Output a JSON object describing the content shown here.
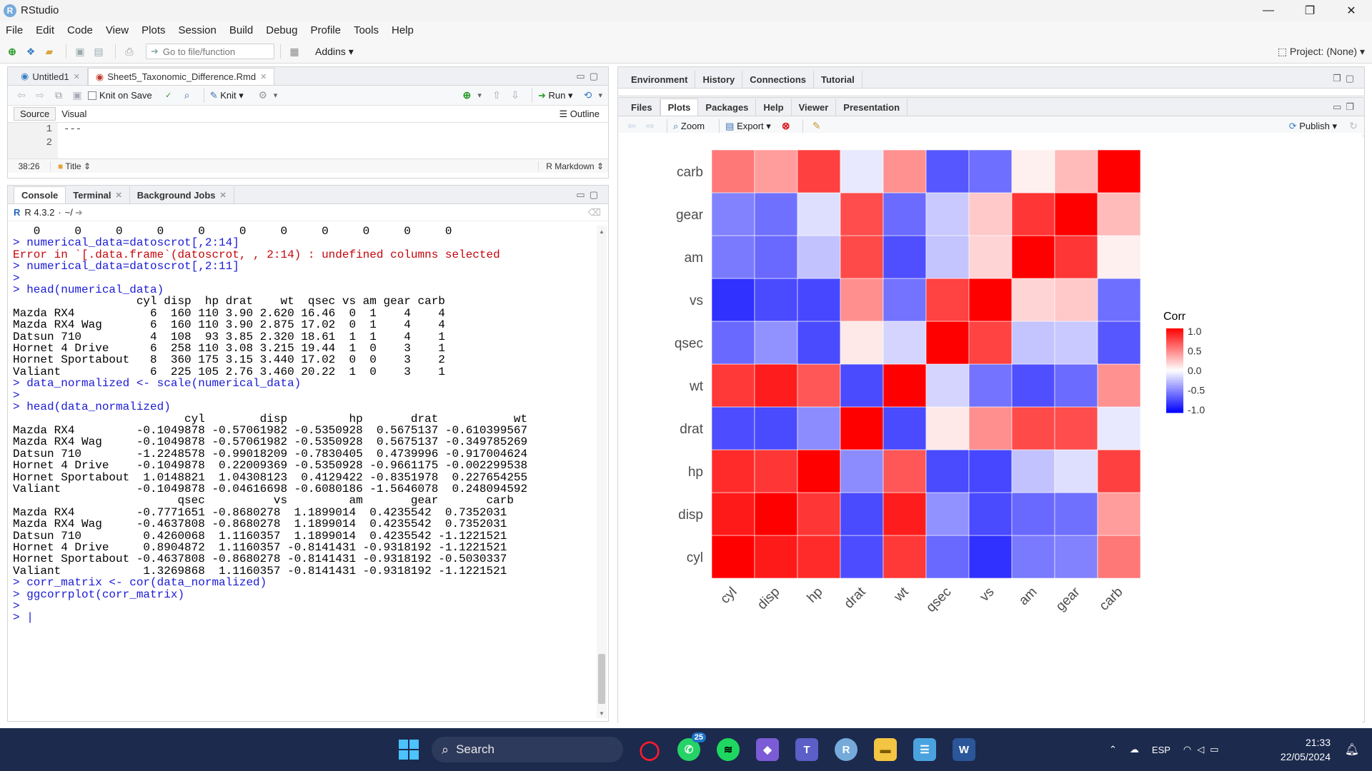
{
  "window": {
    "title": "RStudio",
    "icon": "R",
    "min": "—",
    "max": "❐",
    "close": "✕"
  },
  "menu": [
    "File",
    "Edit",
    "Code",
    "View",
    "Plots",
    "Session",
    "Build",
    "Debug",
    "Profile",
    "Tools",
    "Help"
  ],
  "toolbar": {
    "goto_placeholder": "Go to file/function",
    "addins": "Addins",
    "project": "Project: (None)"
  },
  "source_pane": {
    "tabs": [
      {
        "label": "Untitled1"
      },
      {
        "label": "Sheet5_Taxonomic_Difference.Rmd"
      }
    ],
    "knit_on_save": "Knit on Save",
    "knit": "Knit",
    "run": "Run",
    "mode_source": "Source",
    "mode_visual": "Visual",
    "outline": "Outline",
    "lines": [
      {
        "num": "1",
        "text": "---"
      },
      {
        "num": "2",
        "text": ""
      }
    ],
    "cursor_pos": "38:26",
    "section": "Title",
    "file_type": "R Markdown"
  },
  "console_pane": {
    "tabs": [
      {
        "label": "Console"
      },
      {
        "label": "Terminal"
      },
      {
        "label": "Background Jobs"
      }
    ],
    "r_version": "R 4.3.2",
    "path": "~/",
    "lines": [
      {
        "t": "out",
        "text": "   0     0     0     0     0     0     0     0     0     0     0"
      },
      {
        "t": "cmd",
        "text": "> numerical_data=datoscrot[,2:14]"
      },
      {
        "t": "err",
        "text": "Error in `[.data.frame`(datoscrot, , 2:14) : undefined columns selected"
      },
      {
        "t": "cmd",
        "text": "> numerical_data=datoscrot[,2:11]"
      },
      {
        "t": "cmd",
        "text": "> "
      },
      {
        "t": "cmd",
        "text": "> head(numerical_data)"
      },
      {
        "t": "out",
        "text": "                  cyl disp  hp drat    wt  qsec vs am gear carb"
      },
      {
        "t": "out",
        "text": "Mazda RX4           6  160 110 3.90 2.620 16.46  0  1    4    4"
      },
      {
        "t": "out",
        "text": "Mazda RX4 Wag       6  160 110 3.90 2.875 17.02  0  1    4    4"
      },
      {
        "t": "out",
        "text": "Datsun 710          4  108  93 3.85 2.320 18.61  1  1    4    1"
      },
      {
        "t": "out",
        "text": "Hornet 4 Drive      6  258 110 3.08 3.215 19.44  1  0    3    1"
      },
      {
        "t": "out",
        "text": "Hornet Sportabout   8  360 175 3.15 3.440 17.02  0  0    3    2"
      },
      {
        "t": "out",
        "text": "Valiant             6  225 105 2.76 3.460 20.22  1  0    3    1"
      },
      {
        "t": "cmd",
        "text": "> data_normalized <- scale(numerical_data)"
      },
      {
        "t": "cmd",
        "text": "> "
      },
      {
        "t": "cmd",
        "text": "> head(data_normalized)"
      },
      {
        "t": "out",
        "text": "                         cyl        disp         hp       drat           wt"
      },
      {
        "t": "out",
        "text": "Mazda RX4         -0.1049878 -0.57061982 -0.5350928  0.5675137 -0.610399567"
      },
      {
        "t": "out",
        "text": "Mazda RX4 Wag     -0.1049878 -0.57061982 -0.5350928  0.5675137 -0.349785269"
      },
      {
        "t": "out",
        "text": "Datsun 710        -1.2248578 -0.99018209 -0.7830405  0.4739996 -0.917004624"
      },
      {
        "t": "out",
        "text": "Hornet 4 Drive    -0.1049878  0.22009369 -0.5350928 -0.9661175 -0.002299538"
      },
      {
        "t": "out",
        "text": "Hornet Sportabout  1.0148821  1.04308123  0.4129422 -0.8351978  0.227654255"
      },
      {
        "t": "out",
        "text": "Valiant           -0.1049878 -0.04616698 -0.6080186 -1.5646078  0.248094592"
      },
      {
        "t": "out",
        "text": "                        qsec          vs         am       gear       carb"
      },
      {
        "t": "out",
        "text": "Mazda RX4         -0.7771651 -0.8680278  1.1899014  0.4235542  0.7352031"
      },
      {
        "t": "out",
        "text": "Mazda RX4 Wag     -0.4637808 -0.8680278  1.1899014  0.4235542  0.7352031"
      },
      {
        "t": "out",
        "text": "Datsun 710         0.4260068  1.1160357  1.1899014  0.4235542 -1.1221521"
      },
      {
        "t": "out",
        "text": "Hornet 4 Drive     0.8904872  1.1160357 -0.8141431 -0.9318192 -1.1221521"
      },
      {
        "t": "out",
        "text": "Hornet Sportabout -0.4637808 -0.8680278 -0.8141431 -0.9318192 -0.5030337"
      },
      {
        "t": "out",
        "text": "Valiant            1.3269868  1.1160357 -0.8141431 -0.9318192 -1.1221521"
      },
      {
        "t": "cmd",
        "text": "> corr_matrix <- cor(data_normalized)"
      },
      {
        "t": "cmd",
        "text": "> ggcorrplot(corr_matrix)"
      },
      {
        "t": "cmd",
        "text": "> "
      },
      {
        "t": "cmd",
        "text": "> |"
      }
    ]
  },
  "env_pane": {
    "tabs": [
      {
        "label": "Environment"
      },
      {
        "label": "History"
      },
      {
        "label": "Connections"
      },
      {
        "label": "Tutorial"
      }
    ]
  },
  "files_pane": {
    "tabs": [
      {
        "label": "Files"
      },
      {
        "label": "Plots"
      },
      {
        "label": "Packages"
      },
      {
        "label": "Help"
      },
      {
        "label": "Viewer"
      },
      {
        "label": "Presentation"
      }
    ],
    "zoom": "Zoom",
    "export": "Export",
    "publish": "Publish"
  },
  "chart_data": {
    "type": "heatmap",
    "x_categories": [
      "cyl",
      "disp",
      "hp",
      "drat",
      "wt",
      "qsec",
      "vs",
      "am",
      "gear",
      "carb"
    ],
    "y_categories": [
      "cyl",
      "disp",
      "hp",
      "drat",
      "wt",
      "qsec",
      "vs",
      "am",
      "gear",
      "carb"
    ],
    "values": [
      [
        1.0,
        0.9,
        0.83,
        -0.7,
        0.78,
        -0.59,
        -0.81,
        -0.52,
        -0.49,
        0.53
      ],
      [
        0.9,
        1.0,
        0.79,
        -0.71,
        0.89,
        -0.43,
        -0.71,
        -0.59,
        -0.56,
        0.39
      ],
      [
        0.83,
        0.79,
        1.0,
        -0.45,
        0.66,
        -0.71,
        -0.72,
        -0.24,
        -0.13,
        0.75
      ],
      [
        -0.7,
        -0.71,
        -0.45,
        1.0,
        -0.71,
        0.09,
        0.44,
        0.71,
        0.7,
        -0.09
      ],
      [
        0.78,
        0.89,
        0.66,
        -0.71,
        1.0,
        -0.17,
        -0.55,
        -0.69,
        -0.58,
        0.43
      ],
      [
        -0.59,
        -0.43,
        -0.71,
        0.09,
        -0.17,
        1.0,
        0.74,
        -0.23,
        -0.21,
        -0.66
      ],
      [
        -0.81,
        -0.71,
        -0.72,
        0.44,
        -0.55,
        0.74,
        1.0,
        0.17,
        0.21,
        -0.57
      ],
      [
        -0.52,
        -0.59,
        -0.24,
        0.71,
        -0.69,
        -0.23,
        0.17,
        1.0,
        0.79,
        0.06
      ],
      [
        -0.49,
        -0.56,
        -0.13,
        0.7,
        -0.58,
        -0.21,
        0.21,
        0.79,
        1.0,
        0.27
      ],
      [
        0.53,
        0.39,
        0.75,
        -0.09,
        0.43,
        -0.66,
        -0.57,
        0.06,
        0.27,
        1.0
      ]
    ],
    "legend_title": "Corr",
    "legend_ticks": [
      "1.0",
      "0.5",
      "0.0",
      "-0.5",
      "-1.0"
    ],
    "scale": {
      "low": "#0000FF",
      "mid": "#FFFFFF",
      "high": "#FF0000",
      "limits": [
        -1,
        1
      ]
    }
  },
  "taskbar": {
    "search": "Search",
    "whatsapp_badge": "25",
    "lang": "ESP",
    "time": "21:33",
    "date": "22/05/2024"
  }
}
